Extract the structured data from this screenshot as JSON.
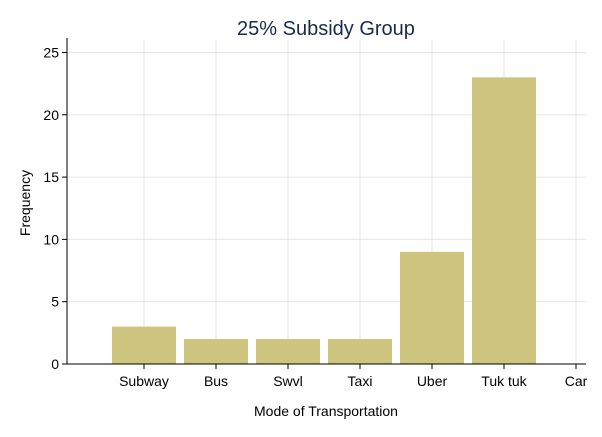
{
  "chart_data": {
    "type": "bar",
    "title": "25% Subsidy Group",
    "xlabel": "Mode of Transportation",
    "ylabel": "Frequency",
    "categories": [
      "Subway",
      "Bus",
      "Swvl",
      "Taxi",
      "Uber",
      "Tuk tuk",
      "Car"
    ],
    "values": [
      3,
      2,
      2,
      2,
      9,
      23,
      0
    ],
    "ylim": [
      0,
      26
    ],
    "yticks": [
      0,
      5,
      10,
      15,
      20,
      25
    ],
    "grid": true,
    "bar_color": "#cdc47f",
    "title_color": "#1a2a4e"
  }
}
